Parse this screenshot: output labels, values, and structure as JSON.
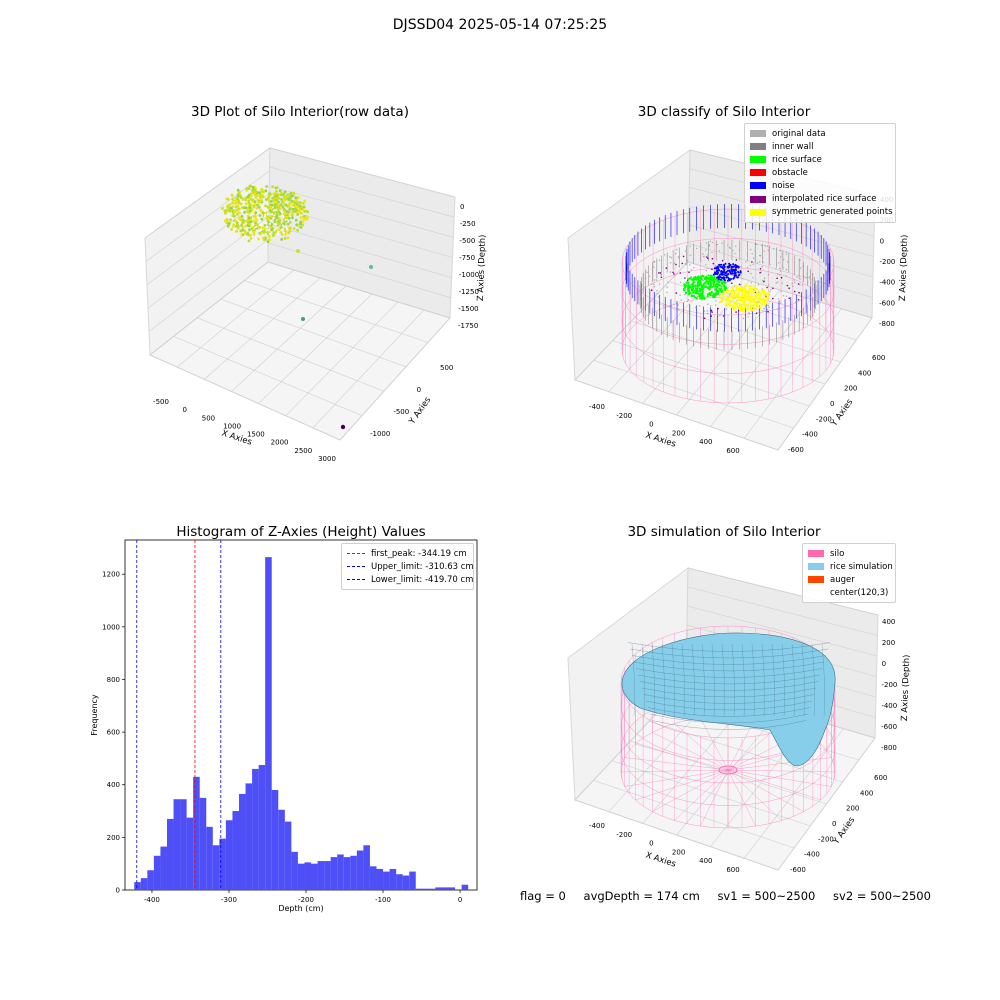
{
  "figure_title": "DJSSD04 2025-05-14 07:25:25",
  "panels": {
    "raw": {
      "title": "3D Plot of Silo Interior(row data)",
      "xlabel": "X Axies",
      "ylabel": "Y Axies",
      "zlabel": "Z Axies (Depth)",
      "xticks": [
        "-500",
        "0",
        "500",
        "1000",
        "1500",
        "2000",
        "2500",
        "3000"
      ],
      "yticks": [
        "500",
        "0",
        "-500",
        "-1000"
      ],
      "zticks": [
        "0",
        "-250",
        "-500",
        "-750",
        "-1000",
        "-1250",
        "-1500",
        "-1750"
      ]
    },
    "classify": {
      "title": "3D classify of Silo Interior",
      "xlabel": "X Axies",
      "ylabel": "Y Axies",
      "zlabel": "Z Axies (Depth)",
      "xticks": [
        "-400",
        "-200",
        "0",
        "200",
        "400",
        "600"
      ],
      "yticks": [
        "600",
        "400",
        "200",
        "0",
        "-200",
        "-400",
        "-600"
      ],
      "zticks": [
        "400",
        "200",
        "0",
        "-200",
        "-400",
        "-600",
        "-800"
      ],
      "legend": [
        {
          "label": "original data",
          "color": "#b0b0b0"
        },
        {
          "label": "inner wall",
          "color": "#808080"
        },
        {
          "label": "rice surface",
          "color": "#00ff00"
        },
        {
          "label": "obstacle",
          "color": "#ff0000"
        },
        {
          "label": "noise",
          "color": "#0000ff"
        },
        {
          "label": "interpolated rice surface",
          "color": "#800080"
        },
        {
          "label": "symmetric generated points",
          "color": "#ffff00"
        }
      ]
    },
    "simulation": {
      "title": "3D simulation of Silo Interior",
      "xlabel": "X Axies",
      "ylabel": "Y Axies",
      "zlabel": "Z Axies (Depth)",
      "xticks": [
        "-400",
        "-200",
        "0",
        "200",
        "400",
        "600"
      ],
      "yticks": [
        "600",
        "400",
        "200",
        "0",
        "-200",
        "-400",
        "-600"
      ],
      "zticks": [
        "400",
        "200",
        "0",
        "-200",
        "-400",
        "-600",
        "-800"
      ],
      "legend": [
        {
          "label": "silo",
          "color": "#ff69b4"
        },
        {
          "label": "rice simulation",
          "color": "#87ceeb"
        },
        {
          "label": "auger",
          "color": "#ff4500"
        },
        {
          "label": "center(120,3)",
          "color": ""
        }
      ]
    }
  },
  "chart_data": {
    "type": "bar",
    "title": "Histogram of Z-Axies (Height) Values",
    "xlabel": "Depth (cm)",
    "ylabel": "Frequency",
    "bar_color": "#4b4bf7",
    "xlim": [
      -435,
      22
    ],
    "ylim": [
      0,
      1330
    ],
    "xticks": [
      -400,
      -300,
      -200,
      -100,
      0
    ],
    "yticks": [
      0,
      200,
      400,
      600,
      800,
      1000,
      1200
    ],
    "bin_width": 8.5,
    "bin_start": -423,
    "values": [
      30,
      45,
      75,
      130,
      165,
      270,
      345,
      345,
      275,
      430,
      350,
      240,
      170,
      195,
      265,
      300,
      365,
      405,
      460,
      475,
      1265,
      380,
      305,
      260,
      145,
      100,
      105,
      100,
      110,
      110,
      125,
      135,
      125,
      130,
      150,
      170,
      90,
      80,
      70,
      80,
      60,
      55,
      70,
      5,
      5,
      5,
      10,
      10,
      10,
      0,
      20
    ],
    "lines": [
      {
        "label": "first_peak: -344.19 cm",
        "x": -344.19,
        "color": "#ff0000"
      },
      {
        "label": "Upper_limit: -310.63 cm",
        "x": -310.63,
        "color": "#0000ff"
      },
      {
        "label": "Lower_limit: -419.70 cm",
        "x": -419.7,
        "color": "#0000ff"
      }
    ]
  },
  "status": {
    "flag": "flag = 0",
    "avg_depth": "avgDepth = 174 cm",
    "sv1": "sv1 = 500~2500",
    "sv2": "sv2 = 500~2500"
  }
}
